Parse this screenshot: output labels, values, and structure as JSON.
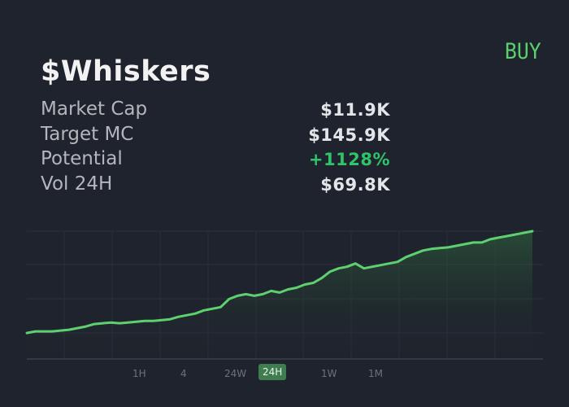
{
  "header": {
    "token_name": "$Whiskers",
    "buy_label": "BUY"
  },
  "stats": [
    {
      "label": "Market Cap",
      "value": "$11.9K",
      "positive": false
    },
    {
      "label": "Target MC",
      "value": "$145.9K",
      "positive": false
    },
    {
      "label": "Potential",
      "value": "+1128%",
      "positive": true
    },
    {
      "label": "Vol 24H",
      "value": "$69.8K",
      "positive": false
    }
  ],
  "timeframes": {
    "items": [
      "1H",
      "4",
      "24W",
      "24H",
      "1W",
      "1M"
    ],
    "active": "24H"
  },
  "colors": {
    "background": "#1f232d",
    "accent_green": "#58d16c",
    "positive": "#2fc46a",
    "line": "#5fd06f"
  },
  "chart_data": {
    "type": "area",
    "x": [
      0,
      1,
      2,
      3,
      4,
      5,
      6,
      7,
      8,
      9,
      10,
      11,
      12,
      13,
      14,
      15,
      16,
      17,
      18,
      19,
      20,
      21,
      22,
      23,
      24,
      25,
      26,
      27,
      28,
      29,
      30,
      31,
      32,
      33,
      34,
      35,
      36,
      37,
      38,
      39,
      40,
      41,
      42,
      43,
      44,
      45,
      46,
      47,
      48,
      49,
      50,
      51,
      52,
      53,
      54,
      55,
      56,
      57,
      58,
      59,
      60
    ],
    "values": [
      0.04,
      0.05,
      0.05,
      0.05,
      0.055,
      0.06,
      0.07,
      0.08,
      0.095,
      0.1,
      0.105,
      0.1,
      0.105,
      0.11,
      0.115,
      0.115,
      0.12,
      0.125,
      0.14,
      0.15,
      0.16,
      0.18,
      0.19,
      0.2,
      0.25,
      0.27,
      0.28,
      0.27,
      0.28,
      0.3,
      0.29,
      0.31,
      0.32,
      0.34,
      0.35,
      0.38,
      0.42,
      0.44,
      0.45,
      0.47,
      0.44,
      0.45,
      0.46,
      0.47,
      0.48,
      0.51,
      0.53,
      0.55,
      0.56,
      0.565,
      0.57,
      0.58,
      0.59,
      0.6,
      0.6,
      0.62,
      0.63,
      0.64,
      0.65,
      0.66,
      0.67
    ],
    "ylim": [
      0,
      1
    ],
    "xlim": [
      0,
      60
    ],
    "grid": true,
    "title": "",
    "xlabel": "",
    "ylabel": ""
  }
}
